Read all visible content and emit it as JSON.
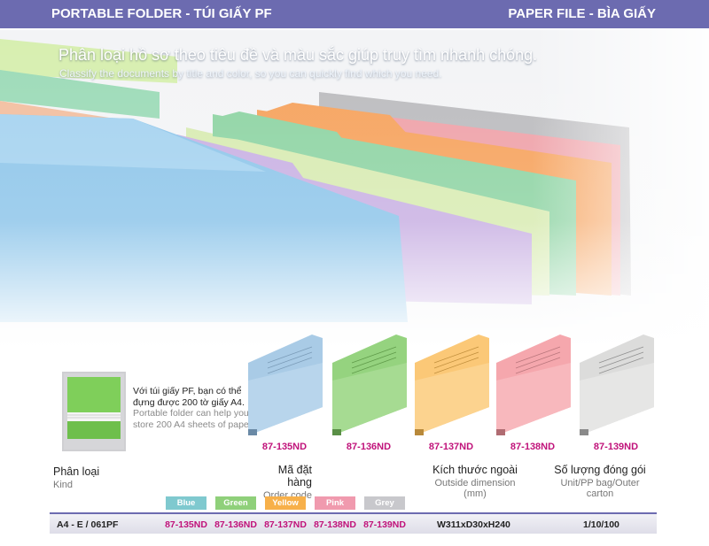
{
  "header": {
    "left_title": "PORTABLE FOLDER - TÚI GIẤY PF",
    "right_title": "PAPER FILE - BÌA GIẤY"
  },
  "hero": {
    "headline_vi": "Phân loại hồ sơ theo tiêu đề và màu sắc giúp truy tìm nhanh chóng.",
    "headline_en": "Classify the documents by title and color, so you can quickly find which you need."
  },
  "description": {
    "vi": "Với túi giấy PF, bạn có thể đựng được 200 tờ giấy A4.",
    "en": "Portable folder can help you store 200 A4 sheets of paper."
  },
  "products": [
    {
      "code": "87-135ND",
      "color_name": "Blue",
      "color": "#a9cbe6",
      "swatch": "#7fc9cf"
    },
    {
      "code": "87-136ND",
      "color_name": "Green",
      "color": "#95d37f",
      "swatch": "#8fd07a"
    },
    {
      "code": "87-137ND",
      "color_name": "Yellow",
      "color": "#fbc877",
      "swatch": "#f7b04a"
    },
    {
      "code": "87-138ND",
      "color_name": "Pink",
      "color": "#f5a7ad",
      "swatch": "#f09aae"
    },
    {
      "code": "87-139ND",
      "color_name": "Grey",
      "color": "#dcdcdb",
      "swatch": "#c8c8cc"
    }
  ],
  "columns": {
    "kind_vi": "Phân loại",
    "kind_en": "Kind",
    "order_vi": "Mã đặt hàng",
    "order_en": "Order code",
    "dimension_vi": "Kích thước ngoài",
    "dimension_en": "Outside dimension (mm)",
    "packing_vi": "Số lượng đóng gói",
    "packing_en": "Unit/PP bag/Outer carton"
  },
  "row": {
    "kind": "A4 - E  /  061PF",
    "codes": [
      "87-135ND",
      "87-136ND",
      "87-137ND",
      "87-138ND",
      "87-139ND"
    ],
    "dimension": "W311xD30xH240",
    "packing": "1/10/100"
  },
  "colors": {
    "header_bg": "#6c6bb0",
    "accent_code": "#c0127a"
  }
}
